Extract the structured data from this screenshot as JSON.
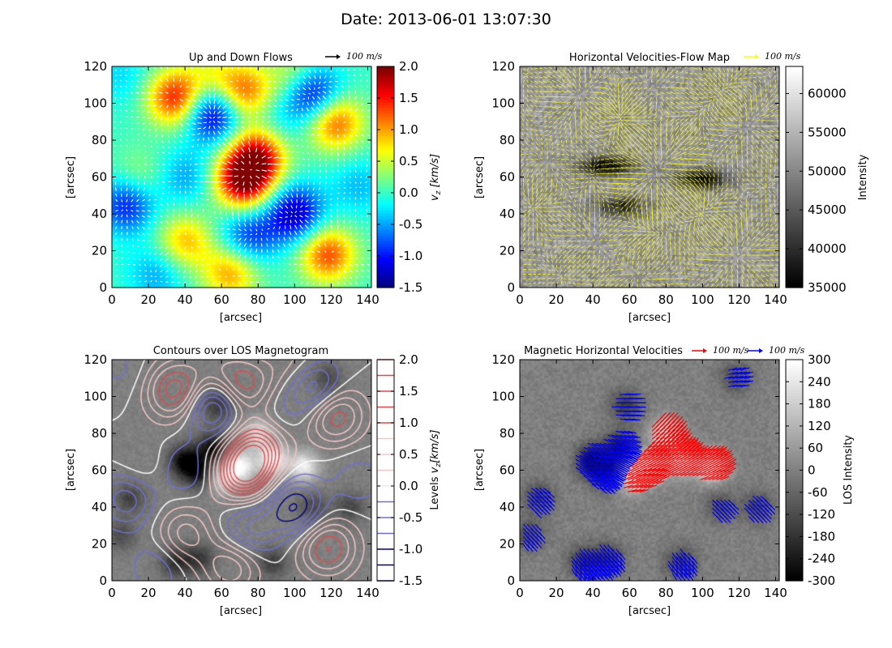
{
  "figure": {
    "suptitle": "Date: 2013-06-01 13:07:30"
  },
  "chart_data": [
    {
      "type": "heatmap",
      "title": "Up and Down Flows",
      "xlabel": "[arcsec]",
      "ylabel": "[arcsec]",
      "xlim": [
        0,
        142
      ],
      "ylim": [
        0,
        120
      ],
      "xticks": [
        0,
        20,
        40,
        60,
        80,
        100,
        120,
        140
      ],
      "yticks": [
        0,
        20,
        40,
        60,
        80,
        100,
        120
      ],
      "quiver_key": "100 m/s",
      "quiver_color": "#ffffff",
      "key_color": "#000000",
      "colormap": "jet",
      "colorbar": {
        "label": "v_z [km/s]",
        "min": -1.5,
        "max": 2.0,
        "ticks": [
          -1.5,
          -1.0,
          -0.5,
          0.0,
          0.5,
          1.0,
          1.5,
          2.0
        ],
        "tick_labels": [
          "-1.5",
          "-1.0",
          "-0.5",
          "0.0",
          "0.5",
          "1.0",
          "1.5",
          "2.0"
        ]
      },
      "blobs": [
        {
          "x": 72,
          "y": 58,
          "v": 1.9
        },
        {
          "x": 80,
          "y": 72,
          "v": 1.5
        },
        {
          "x": 35,
          "y": 103,
          "v": 1.5
        },
        {
          "x": 72,
          "y": 106,
          "v": 1.2
        },
        {
          "x": 122,
          "y": 90,
          "v": 1.3
        },
        {
          "x": 118,
          "y": 18,
          "v": 1.3
        },
        {
          "x": 65,
          "y": 8,
          "v": 1.0
        },
        {
          "x": 40,
          "y": 25,
          "v": 0.9
        },
        {
          "x": 15,
          "y": 60,
          "v": 0.4
        },
        {
          "x": 100,
          "y": 115,
          "v": 0.6
        },
        {
          "x": 55,
          "y": 115,
          "v": 0.5
        },
        {
          "x": 55,
          "y": 95,
          "v": -1.4
        },
        {
          "x": 110,
          "y": 105,
          "v": -1.3
        },
        {
          "x": 100,
          "y": 40,
          "v": -1.3
        },
        {
          "x": 8,
          "y": 45,
          "v": -1.0
        },
        {
          "x": 75,
          "y": 28,
          "v": -0.9
        },
        {
          "x": 40,
          "y": 60,
          "v": -0.5
        },
        {
          "x": 135,
          "y": 55,
          "v": -0.4
        },
        {
          "x": 25,
          "y": 8,
          "v": -0.5
        },
        {
          "x": 90,
          "y": 90,
          "v": -0.3
        },
        {
          "x": 5,
          "y": 115,
          "v": -0.3
        }
      ]
    },
    {
      "type": "heatmap",
      "title": "Horizontal Velocities-Flow Map",
      "xlabel": "[arcsec]",
      "ylabel": "[arcsec]",
      "xlim": [
        0,
        142
      ],
      "ylim": [
        0,
        120
      ],
      "xticks": [
        0,
        20,
        40,
        60,
        80,
        100,
        120,
        140
      ],
      "yticks": [
        0,
        20,
        40,
        60,
        80,
        100,
        120
      ],
      "quiver_key": "100 m/s",
      "quiver_color": "#ffff00",
      "key_color": "#ffff00",
      "colormap": "gray",
      "colorbar": {
        "label": "Intensity",
        "min": 35000,
        "max": 63500,
        "ticks": [
          35000,
          40000,
          45000,
          50000,
          55000,
          60000
        ],
        "tick_labels": [
          "35000",
          "40000",
          "45000",
          "50000",
          "55000",
          "60000"
        ]
      },
      "dark_features": [
        {
          "x": 48,
          "y": 66,
          "v": 36000
        },
        {
          "x": 100,
          "y": 59,
          "v": 37000
        },
        {
          "x": 55,
          "y": 44,
          "v": 40000
        }
      ]
    },
    {
      "type": "heatmap",
      "title": "Contours over LOS Magnetogram",
      "xlabel": "[arcsec]",
      "ylabel": "[arcsec]",
      "xlim": [
        0,
        142
      ],
      "ylim": [
        0,
        120
      ],
      "xticks": [
        0,
        20,
        40,
        60,
        80,
        100,
        120,
        140
      ],
      "yticks": [
        0,
        20,
        40,
        60,
        80,
        100,
        120
      ],
      "colormap": "gray",
      "colorbar": {
        "label": "Levels v_z [km/s]",
        "min": -1.5,
        "max": 2.0,
        "ticks": [
          -1.5,
          -1.0,
          -0.5,
          0.0,
          0.5,
          1.0,
          1.5,
          2.0
        ],
        "tick_labels": [
          "-1.5",
          "-1.0",
          "-0.5",
          "0.0",
          "0.5",
          "1.0",
          "1.5",
          "2.0"
        ],
        "levels": [
          -1.5,
          -1.25,
          -1.0,
          -0.75,
          -0.5,
          -0.25,
          0.0,
          0.25,
          0.5,
          0.75,
          1.0,
          1.25,
          1.5,
          1.75,
          2.0
        ]
      }
    },
    {
      "type": "heatmap",
      "title": "Magnetic Horizontal Velocities",
      "xlabel": "[arcsec]",
      "ylabel": "[arcsec]",
      "xlim": [
        0,
        142
      ],
      "ylim": [
        0,
        120
      ],
      "xticks": [
        0,
        20,
        40,
        60,
        80,
        100,
        120,
        140
      ],
      "yticks": [
        0,
        20,
        40,
        60,
        80,
        100,
        120
      ],
      "quiver_keys": [
        {
          "text": "100 m/s",
          "color": "#ff0000"
        },
        {
          "text": "100 m/s",
          "color": "#0000ff"
        }
      ],
      "colormap": "gray",
      "colorbar": {
        "label": "LOS Intensity",
        "min": -300,
        "max": 300,
        "ticks": [
          -300,
          -240,
          -180,
          -120,
          -60,
          0,
          60,
          120,
          180,
          240,
          300
        ],
        "tick_labels": [
          "-300",
          "-240",
          "-180",
          "-120",
          "-60",
          "0",
          "60",
          "120",
          "180",
          "240",
          "300"
        ]
      }
    }
  ],
  "magnetogram": {
    "positive": [
      {
        "x": 70,
        "y": 62,
        "v": 300
      },
      {
        "x": 88,
        "y": 66,
        "v": 280
      },
      {
        "x": 105,
        "y": 62,
        "v": 260
      },
      {
        "x": 80,
        "y": 80,
        "v": 200
      },
      {
        "x": 60,
        "y": 55,
        "v": 180
      }
    ],
    "negative": [
      {
        "x": 40,
        "y": 65,
        "v": -300
      },
      {
        "x": 55,
        "y": 72,
        "v": -260
      },
      {
        "x": 48,
        "y": 58,
        "v": -220
      },
      {
        "x": 58,
        "y": 95,
        "v": -160
      },
      {
        "x": 10,
        "y": 45,
        "v": -140
      },
      {
        "x": 35,
        "y": 10,
        "v": -180
      },
      {
        "x": 48,
        "y": 12,
        "v": -160
      },
      {
        "x": 88,
        "y": 10,
        "v": -150
      },
      {
        "x": 110,
        "y": 40,
        "v": -120
      },
      {
        "x": 130,
        "y": 40,
        "v": -130
      },
      {
        "x": 5,
        "y": 25,
        "v": -120
      },
      {
        "x": 118,
        "y": 110,
        "v": -120
      }
    ]
  }
}
